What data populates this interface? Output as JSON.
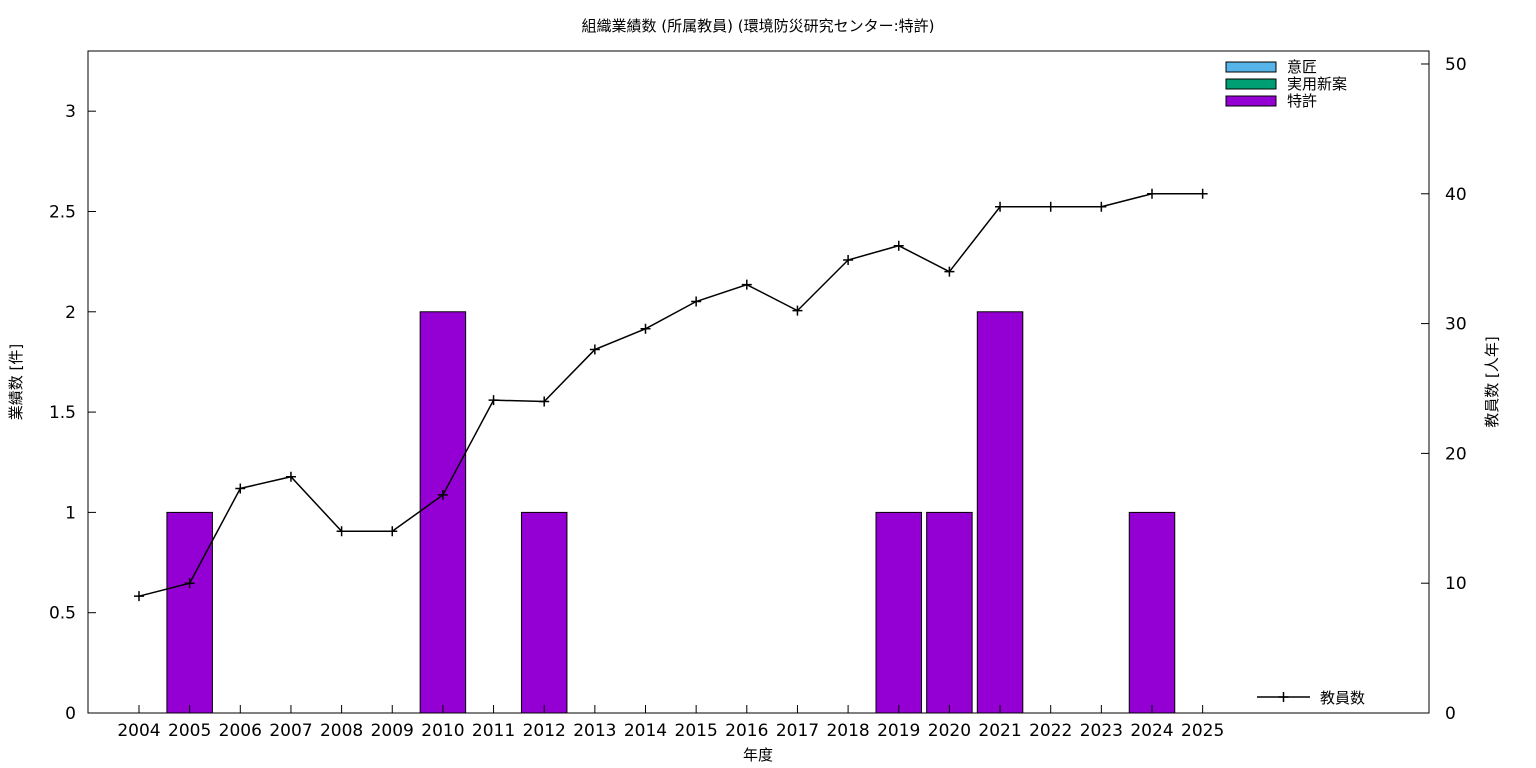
{
  "chart_data": {
    "type": "bar",
    "title": "組織業績数 (所属教員) (環境防災研究センター:特許)",
    "xlabel": "年度",
    "ylabel": "業績数 [件]",
    "y2label": "教員数 [人年]",
    "categories": [
      "2004",
      "2005",
      "2006",
      "2007",
      "2008",
      "2009",
      "2010",
      "2011",
      "2012",
      "2013",
      "2014",
      "2015",
      "2016",
      "2017",
      "2018",
      "2019",
      "2020",
      "2021",
      "2022",
      "2023",
      "2024",
      "2025"
    ],
    "ylim": [
      0,
      3.3
    ],
    "y2lim": [
      0,
      51
    ],
    "yticks": [
      "0",
      "0.5",
      "1",
      "1.5",
      "2",
      "2.5",
      "3"
    ],
    "y2ticks": [
      "0",
      "10",
      "20",
      "30",
      "40",
      "50"
    ],
    "grid": false,
    "legend_bar_position": "top-right",
    "legend_line_position": "bottom-right",
    "series": [
      {
        "name": "意匠",
        "kind": "bar",
        "color": "#56b4e9",
        "values": [
          0,
          0,
          0,
          0,
          0,
          0,
          0,
          0,
          0,
          0,
          0,
          0,
          0,
          0,
          0,
          0,
          0,
          0,
          0,
          0,
          0,
          0
        ]
      },
      {
        "name": "実用新案",
        "kind": "bar",
        "color": "#009e73",
        "values": [
          0,
          0,
          0,
          0,
          0,
          0,
          0,
          0,
          0,
          0,
          0,
          0,
          0,
          0,
          0,
          0,
          0,
          0,
          0,
          0,
          0,
          0
        ]
      },
      {
        "name": "特許",
        "kind": "bar",
        "color": "#9400d3",
        "values": [
          0,
          1,
          0,
          0,
          0,
          0,
          2,
          0,
          1,
          0,
          0,
          0,
          0,
          0,
          0,
          1,
          1,
          2,
          0,
          0,
          1,
          0
        ]
      },
      {
        "name": "教員数",
        "kind": "line",
        "axis": "y2",
        "color": "#000000",
        "values": [
          9,
          10,
          17.3,
          18.2,
          14,
          14,
          16.8,
          24.1,
          24,
          28,
          29.6,
          31.7,
          33,
          31,
          34.9,
          36,
          34,
          39,
          39,
          39,
          40,
          40
        ]
      }
    ]
  }
}
